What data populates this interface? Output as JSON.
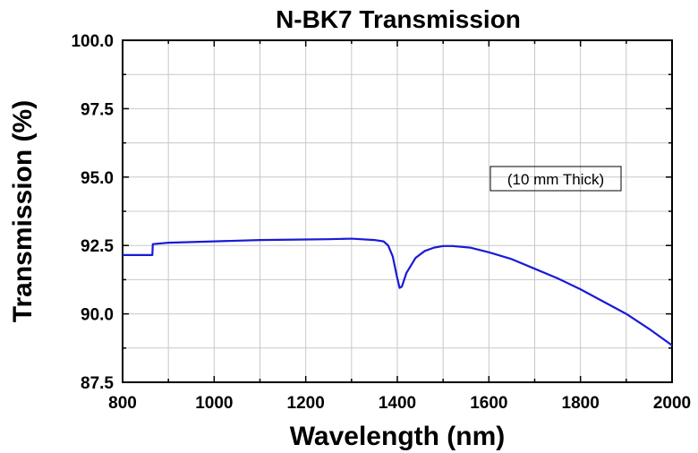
{
  "chart_data": {
    "type": "line",
    "title": "N-BK7 Transmission",
    "xlabel": "Wavelength (nm)",
    "ylabel": "Transmission (%)",
    "xlim": [
      800,
      2000
    ],
    "ylim": [
      87.5,
      100.0
    ],
    "x_ticks": [
      "800",
      "1000",
      "1200",
      "1400",
      "1600",
      "1800",
      "2000"
    ],
    "y_ticks": [
      "87.5",
      "90.0",
      "92.5",
      "95.0",
      "97.5",
      "100.0"
    ],
    "grid": true,
    "annotation": "(10 mm Thick)",
    "line_color": "#1a1ad6",
    "series": [
      {
        "x": [
          800,
          850,
          865,
          866,
          900,
          1000,
          1100,
          1200,
          1250,
          1300,
          1350,
          1370,
          1380,
          1390,
          1400,
          1405,
          1410,
          1420,
          1440,
          1460,
          1480,
          1500,
          1520,
          1560,
          1600,
          1650,
          1700,
          1750,
          1800,
          1850,
          1900,
          1950,
          2000
        ],
        "y": [
          92.15,
          92.15,
          92.15,
          92.55,
          92.6,
          92.65,
          92.7,
          92.72,
          92.73,
          92.75,
          92.7,
          92.65,
          92.5,
          92.1,
          91.3,
          90.95,
          91.0,
          91.5,
          92.05,
          92.3,
          92.42,
          92.48,
          92.48,
          92.42,
          92.25,
          92.0,
          91.65,
          91.3,
          90.9,
          90.45,
          90.0,
          89.45,
          88.85
        ]
      }
    ]
  }
}
